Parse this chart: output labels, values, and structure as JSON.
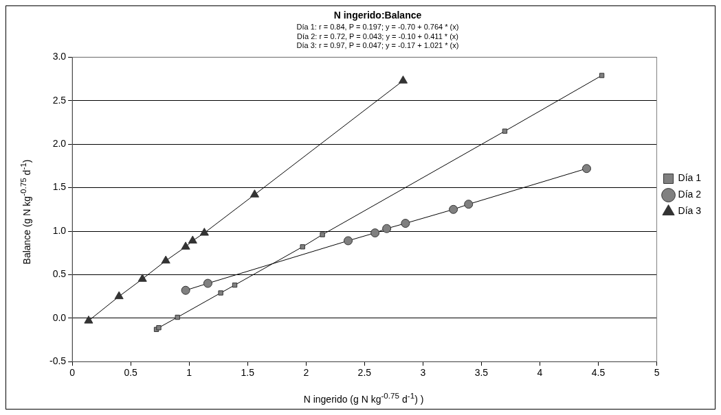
{
  "chart_data": {
    "type": "line",
    "title": "N ingerido:Balance",
    "subtitle": [
      "Día 1: r = 0.84, P = 0.197; y = -0.70 + 0.764 * (x)",
      "Día 2: r = 0.72, P = 0.043; y = -0.10 + 0.411 * (x)",
      "Día 3: r = 0.97, P = 0.047; y = -0.17 + 1.021 * (x)"
    ],
    "xlabel": "N ingerido (g N kg$^{-0.75}$ d$^{-1}$) )",
    "ylabel": "Balance (g N kg$^{-0.75}$ d$^{-1}$)",
    "series": [
      {
        "name": "Día 1",
        "color": "#808080",
        "marker": "square",
        "x": [
          0.72,
          0.74,
          0.9,
          1.27,
          1.39,
          1.97,
          2.14,
          3.7,
          4.53
        ],
        "values": [
          -0.13,
          -0.11,
          0.01,
          0.29,
          0.38,
          0.82,
          0.96,
          2.15,
          2.79
        ]
      },
      {
        "name": "Día 2",
        "color": "#808080",
        "marker": "circle",
        "x": [
          0.97,
          1.16,
          2.36,
          2.59,
          2.69,
          2.85,
          3.26,
          3.39,
          4.4
        ],
        "values": [
          0.32,
          0.4,
          0.89,
          0.98,
          1.03,
          1.09,
          1.25,
          1.31,
          1.72
        ]
      },
      {
        "name": "Día 3",
        "color": "#333333",
        "marker": "triangle",
        "x": [
          0.14,
          0.4,
          0.6,
          0.8,
          0.97,
          1.03,
          1.13,
          1.56,
          2.83
        ],
        "values": [
          -0.03,
          0.25,
          0.45,
          0.66,
          0.82,
          0.89,
          0.98,
          1.42,
          2.73
        ]
      }
    ],
    "xlim": [
      0,
      5
    ],
    "xticks": [
      0,
      0.5,
      1,
      1.5,
      2,
      2.5,
      3,
      3.5,
      4,
      4.5,
      5
    ],
    "ylim": [
      -0.5,
      3
    ],
    "yticks": [
      {
        "value": -0.5,
        "label": "-0.5"
      },
      {
        "value": 0,
        "label": "0.0"
      },
      {
        "value": 0.5,
        "label": "0.5"
      },
      {
        "value": 1,
        "label": "1.0"
      },
      {
        "value": 1.5,
        "label": "1.5"
      },
      {
        "value": 2,
        "label": "2.0"
      },
      {
        "value": 2.5,
        "label": "2.5"
      },
      {
        "value": 3,
        "label": "3.0"
      }
    ],
    "grid": "y",
    "legend": "right",
    "line_style": "solid"
  }
}
